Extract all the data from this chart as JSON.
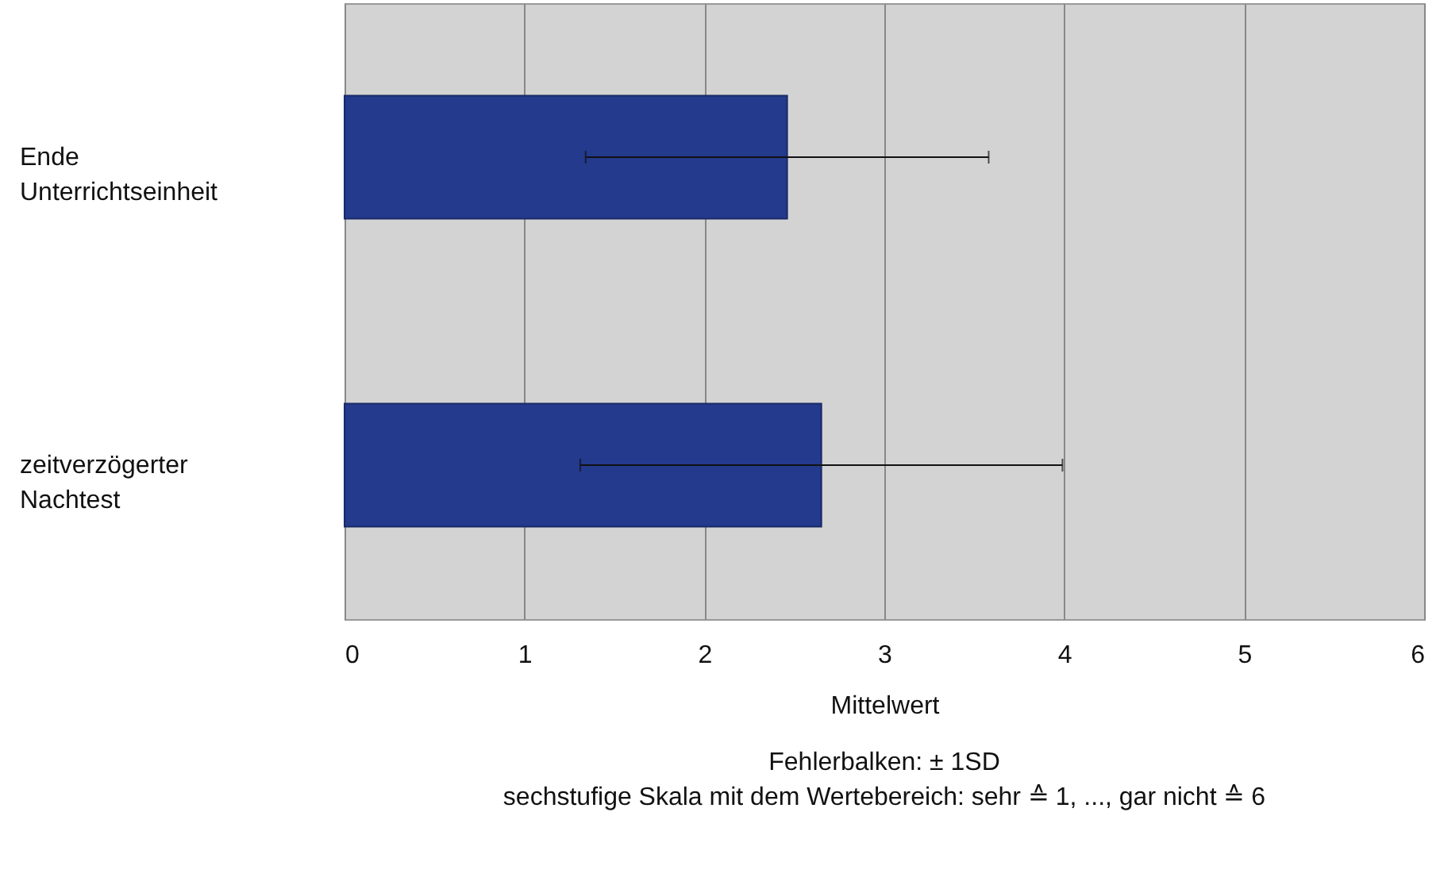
{
  "chart_data": {
    "type": "bar",
    "orientation": "horizontal",
    "categories": [
      "Ende Unterrichtseinheit",
      "zeitverzögerter Nachtest"
    ],
    "values": [
      2.46,
      2.65
    ],
    "errors": [
      1.12,
      1.34
    ],
    "color": "#233a8d",
    "xlim": [
      0,
      6
    ],
    "xticks": [
      0,
      1,
      2,
      3,
      4,
      5,
      6
    ],
    "xlabel": "Mittelwert",
    "grid": "x",
    "annotations": [
      "Fehlerbalken: ± 1SD",
      "sechstufige Skala mit dem Wertebereich: sehr ≙ 1, ..., gar nicht ≙ 6"
    ]
  }
}
